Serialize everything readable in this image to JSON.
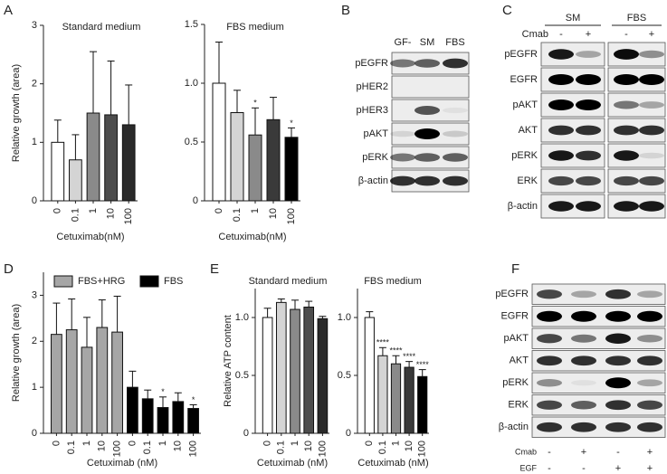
{
  "chart_data": [
    {
      "type": "bar",
      "panel": "A",
      "title": "Standard medium",
      "y_label": "Relative growth (area)",
      "x_label": "Cetuximab(nM)",
      "categories": [
        "0",
        "0.1",
        "1",
        "10",
        "100"
      ],
      "values": [
        1.0,
        0.7,
        1.5,
        1.47,
        1.3
      ],
      "errors": [
        0.38,
        0.43,
        1.05,
        0.92,
        0.68
      ],
      "colors": [
        "#ffffff",
        "#d4d4d4",
        "#8a8a8a",
        "#4d4d4d",
        "#2a2a2a"
      ],
      "ylim": [
        0,
        3
      ],
      "yticks": [
        0,
        1,
        2,
        3
      ]
    },
    {
      "type": "bar",
      "title": "FBS medium",
      "x_label": "Cetuximab(nM)",
      "categories": [
        "0",
        "0.1",
        "1",
        "10",
        "100"
      ],
      "values": [
        1.0,
        0.75,
        0.56,
        0.69,
        0.54
      ],
      "errors": [
        0.35,
        0.19,
        0.23,
        0.19,
        0.08
      ],
      "annotations": [
        null,
        null,
        "*",
        null,
        "*"
      ],
      "colors": [
        "#ffffff",
        "#d4d4d4",
        "#8a8a8a",
        "#3a3a3a",
        "#000000"
      ],
      "ylim": [
        0,
        1.5
      ],
      "yticks": [
        0,
        0.5,
        {
          "value": 1,
          "label": "1.0"
        },
        1.5
      ]
    },
    {
      "type": "grouped-bar",
      "panel": "D",
      "y_label": "Relative growth (area)",
      "x_label": "Cetuximab (nM)",
      "categories": [
        "0",
        "0.1",
        "1",
        "10",
        "100",
        "0",
        "0.1",
        "1",
        "10",
        "100"
      ],
      "series": [
        {
          "name": "FBS+HRG",
          "color": "#a6a6a6",
          "values": [
            2.15,
            2.25,
            1.87,
            2.3,
            2.2,
            null,
            null,
            null,
            null,
            null
          ],
          "errors": [
            0.68,
            0.67,
            0.65,
            0.6,
            0.78,
            null,
            null,
            null,
            null,
            null
          ]
        },
        {
          "name": "FBS",
          "color": "#000000",
          "values": [
            null,
            null,
            null,
            null,
            null,
            1.0,
            0.75,
            0.56,
            0.69,
            0.54
          ],
          "errors": [
            null,
            null,
            null,
            null,
            null,
            0.35,
            0.19,
            0.23,
            0.19,
            0.08
          ],
          "annotations": [
            null,
            null,
            null,
            null,
            null,
            null,
            null,
            "*",
            null,
            "*"
          ]
        }
      ],
      "ylim": [
        0,
        3.5
      ],
      "yticks": [
        0,
        1,
        2,
        3
      ],
      "legend": "top"
    },
    {
      "type": "bar",
      "panel": "E",
      "title": "Standard medium",
      "y_label": "Relative ATP content",
      "x_label": "Cetuximab (nM)",
      "categories": [
        "0",
        "0.1",
        "1",
        "10",
        "100"
      ],
      "values": [
        1.0,
        1.13,
        1.07,
        1.09,
        0.99
      ],
      "errors": [
        0.08,
        0.03,
        0.08,
        0.05,
        0.02
      ],
      "colors": [
        "#ffffff",
        "#d4d4d4",
        "#8a8a8a",
        "#4d4d4d",
        "#2a2a2a"
      ],
      "ylim": [
        0,
        1.25
      ],
      "yticks": [
        0,
        0.5,
        {
          "value": 1,
          "label": "1.0"
        }
      ]
    },
    {
      "type": "bar",
      "title": "FBS medium",
      "x_label": "Cetuximab (nM)",
      "categories": [
        "0",
        "0.1",
        "1",
        "10",
        "100"
      ],
      "values": [
        1.0,
        0.67,
        0.6,
        0.57,
        0.49
      ],
      "errors": [
        0.05,
        0.07,
        0.07,
        0.05,
        0.06
      ],
      "annotations": [
        null,
        "****",
        "****",
        "****",
        "****"
      ],
      "colors": [
        "#ffffff",
        "#d4d4d4",
        "#8a8a8a",
        "#3a3a3a",
        "#000000"
      ],
      "ylim": [
        0,
        1.25
      ],
      "yticks": [
        0,
        0.5,
        {
          "value": 1,
          "label": "1.0"
        }
      ]
    }
  ],
  "blots": [
    {
      "panel": "B",
      "columns": [
        "GF-",
        "SM",
        "FBS"
      ],
      "rows": [
        "pEGFR",
        "pHER2",
        "pHER3",
        "pAKT",
        "pERK",
        "β-actin"
      ]
    },
    {
      "panel": "C",
      "groups": [
        "SM",
        "FBS"
      ],
      "treatments": [
        {
          "name": "Cmab",
          "signs": [
            "-",
            "+",
            "-",
            "+"
          ]
        }
      ],
      "rows": [
        "pEGFR",
        "EGFR",
        "pAKT",
        "AKT",
        "pERK",
        "ERK",
        "β-actin"
      ]
    },
    {
      "panel": "F",
      "rows": [
        "pEGFR",
        "EGFR",
        "pAKT",
        "AKT",
        "pERK",
        "ERK",
        "β-actin"
      ],
      "treatments": [
        {
          "name": "Cmab",
          "signs": [
            "-",
            "+",
            "-",
            "+"
          ]
        },
        {
          "name": "EGF",
          "signs": [
            "-",
            "-",
            "+",
            "+"
          ]
        }
      ]
    }
  ]
}
